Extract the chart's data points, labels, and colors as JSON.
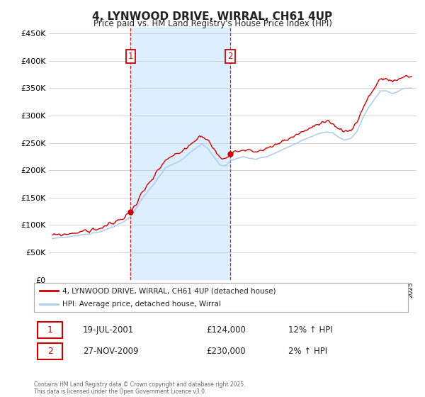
{
  "title": "4, LYNWOOD DRIVE, WIRRAL, CH61 4UP",
  "subtitle": "Price paid vs. HM Land Registry's House Price Index (HPI)",
  "legend_entry1": "4, LYNWOOD DRIVE, WIRRAL, CH61 4UP (detached house)",
  "legend_entry2": "HPI: Average price, detached house, Wirral",
  "transaction1_price": 124000,
  "transaction1_label": "19-JUL-2001",
  "transaction1_amount": "£124,000",
  "transaction1_hpi": "12% ↑ HPI",
  "transaction2_price": 230000,
  "transaction2_label": "27-NOV-2009",
  "transaction2_amount": "£230,000",
  "transaction2_hpi": "2% ↑ HPI",
  "ylabel_values": [
    0,
    50000,
    100000,
    150000,
    200000,
    250000,
    300000,
    350000,
    400000,
    450000
  ],
  "ylim": [
    0,
    460000
  ],
  "x_start_year": 1995,
  "x_end_year": 2025,
  "line_color_property": "#cc0000",
  "line_color_hpi": "#aaccee",
  "shade_color": "#ddeeff",
  "dashed_line_color": "#cc0000",
  "footer_text": "Contains HM Land Registry data © Crown copyright and database right 2025.\nThis data is licensed under the Open Government Licence v3.0.",
  "background_color": "#ffffff",
  "grid_color": "#cccccc",
  "t1_year_dec": 2001.54,
  "t2_year_dec": 2009.9
}
